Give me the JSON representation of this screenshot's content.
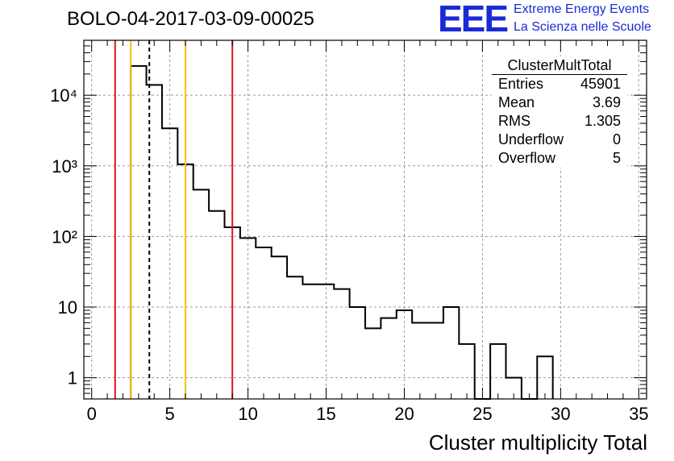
{
  "title": "BOLO-04-2017-03-09-00025",
  "logo": {
    "mark": "EEE",
    "line1": "Extreme Energy Events",
    "line2": "La Scienza nelle Scuole"
  },
  "stats_box": {
    "title": "ClusterMultTotal",
    "rows": [
      {
        "label": "Entries",
        "value": "45901"
      },
      {
        "label": "Mean",
        "value": "3.69"
      },
      {
        "label": "RMS",
        "value": "1.305"
      },
      {
        "label": "Underflow",
        "value": "0"
      },
      {
        "label": "Overflow",
        "value": "5"
      }
    ]
  },
  "chart_data": {
    "type": "bar",
    "xlabel": "Cluster multiplicity Total",
    "ylabel": "",
    "x_scale": "linear",
    "y_scale": "log",
    "xlim": [
      -0.5,
      35.5
    ],
    "ylim": [
      0.5,
      60000
    ],
    "grid": true,
    "x_ticks": [
      0,
      5,
      10,
      15,
      20,
      25,
      30,
      35
    ],
    "y_ticks": [
      {
        "value": 1,
        "label": "1"
      },
      {
        "value": 10,
        "label": "10"
      },
      {
        "value": 100,
        "label": "10²"
      },
      {
        "value": 1000,
        "label": "10³"
      },
      {
        "value": 10000,
        "label": "10⁴"
      }
    ],
    "bin_edges": [
      2.5,
      3.5,
      4.5,
      5.5,
      6.5,
      7.5,
      8.5,
      9.5,
      10.5,
      11.5,
      12.5,
      13.5,
      14.5,
      15.5,
      16.5,
      17.5,
      18.5,
      19.5,
      20.5,
      21.5,
      22.5,
      23.5,
      24.5,
      25.5,
      26.5,
      27.5,
      28.5,
      29.5
    ],
    "bin_counts": [
      26000,
      14000,
      3400,
      1050,
      460,
      230,
      135,
      95,
      70,
      52,
      27,
      21,
      21,
      18,
      10,
      5,
      7,
      9,
      6,
      6,
      10,
      3,
      0,
      3,
      1,
      0,
      2
    ],
    "colors": {
      "histogram": "#000000",
      "red_lines": "#e0141a",
      "yellow_lines": "#f2c20a",
      "grid": "#9a9a9a",
      "logo": "#1a2bd6"
    },
    "vertical_lines": [
      {
        "x": 1.5,
        "color": "red",
        "style": "solid"
      },
      {
        "x": 2.5,
        "color": "yellow",
        "style": "solid"
      },
      {
        "x": 3.69,
        "color": "black",
        "style": "dashed"
      },
      {
        "x": 6.0,
        "color": "yellow",
        "style": "solid"
      },
      {
        "x": 9.0,
        "color": "red",
        "style": "solid"
      }
    ]
  }
}
